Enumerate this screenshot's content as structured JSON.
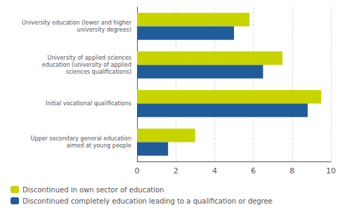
{
  "chart_data": {
    "type": "bar",
    "orientation": "horizontal",
    "categories": [
      "University education (lower and higher\nuniversity degrees)",
      "University of applied sciences\neducation (university of applied\nsciences qualifications)",
      "Initial vocational qualifications",
      "Upper secondary general education\naimed at young people"
    ],
    "series": [
      {
        "name": "Discontinued in own sector of education",
        "color": "#c8d400",
        "values": [
          5.8,
          7.5,
          9.5,
          3.0
        ]
      },
      {
        "name": "Discontinued completely education leading to a qualification or degree",
        "color": "#1f5c99",
        "values": [
          5.0,
          6.5,
          8.8,
          1.6
        ]
      }
    ],
    "xlim": [
      0,
      10
    ],
    "xticks": [
      0,
      2,
      4,
      6,
      8,
      10
    ],
    "grid": true,
    "legend": "bottom"
  }
}
